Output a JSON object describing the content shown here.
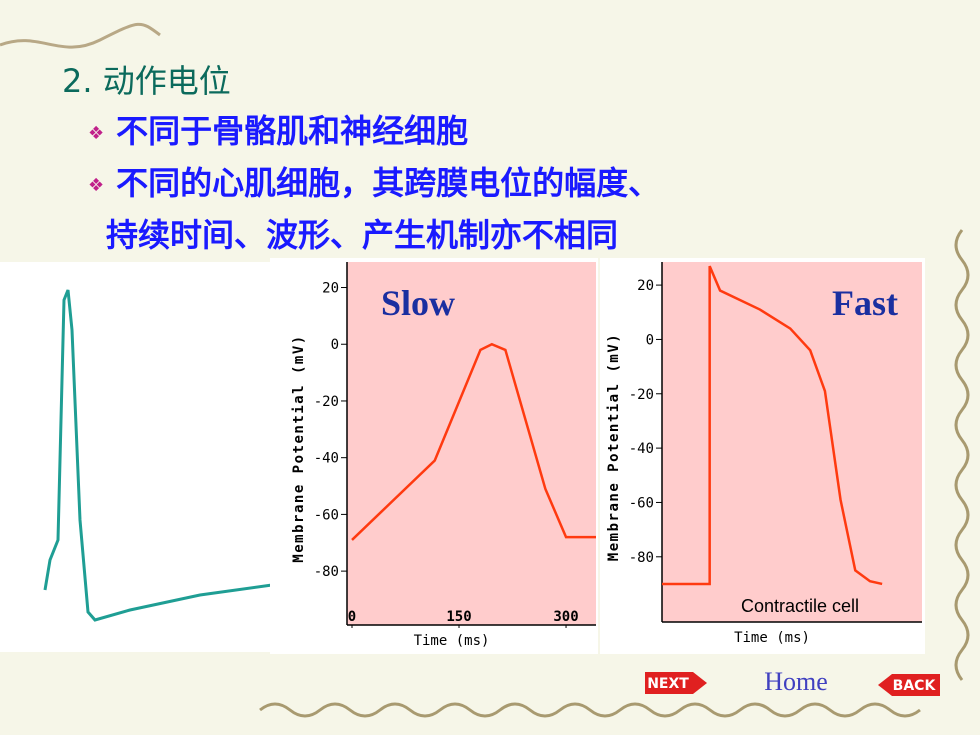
{
  "title": "2. 动作电位",
  "bullets": [
    "不同于骨骼肌和神经细胞",
    "不同的心肌细胞，其跨膜电位的幅度、",
    "持续时间、波形、产生机制亦不相同"
  ],
  "nav": {
    "next": "NEXT",
    "home": "Home",
    "back": "BACK"
  },
  "chart_data": [
    {
      "type": "line",
      "title": "Slow",
      "x_label": "Time (ms)",
      "y_label": "Membrane Potential (mV)",
      "xlim": [
        -7,
        342
      ],
      "xticks": [
        0,
        150,
        300
      ],
      "ylim": [
        -99,
        29
      ],
      "yticks": [
        20,
        0,
        -20,
        -40,
        -60,
        -80
      ],
      "series": [
        {
          "color": "#ff3a10",
          "x": [
            0,
            116,
            180,
            196,
            215,
            271,
            300,
            342
          ],
          "values": [
            -69,
            -41,
            -2,
            0,
            -2,
            -51,
            -68,
            -68
          ]
        }
      ]
    },
    {
      "type": "line",
      "title": "Fast",
      "x_label": "Time (ms)",
      "y_label": "Membrane Potential (mV)",
      "annotation": "Contractile cell",
      "xlim": [
        0,
        300
      ],
      "xticks": [],
      "ylim": [
        -104,
        28.5
      ],
      "yticks": [
        20,
        0,
        -20,
        -40,
        -60,
        -80
      ],
      "series": [
        {
          "color": "#ff3a10",
          "x": [
            0,
            55,
            55,
            67,
            113,
            148,
            171,
            188,
            206,
            223,
            240,
            254
          ],
          "values": [
            -90,
            -90,
            27,
            18,
            11,
            4,
            -4,
            -19,
            -59,
            -85,
            -89,
            -90
          ]
        }
      ]
    }
  ]
}
